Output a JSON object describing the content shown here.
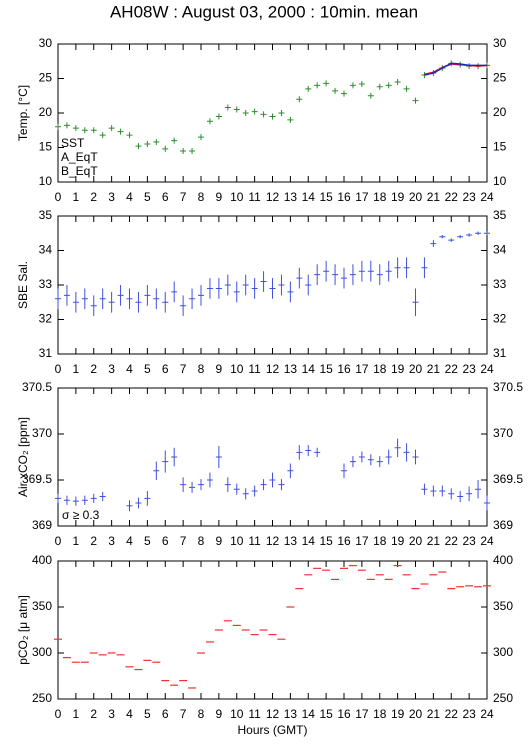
{
  "chart_data": [
    {
      "type": "scatter",
      "title": "AH08W : August 03, 2000 : 10min. mean",
      "ylabel": "Temp. [°C]",
      "x": [
        0,
        0.5,
        1,
        1.5,
        2,
        2.5,
        3,
        3.5,
        4,
        4.5,
        5,
        5.5,
        6,
        6.5,
        7,
        7.5,
        8,
        8.5,
        9,
        9.5,
        10,
        10.5,
        11,
        11.5,
        12,
        12.5,
        13,
        13.5,
        14,
        14.5,
        15,
        15.5,
        16,
        16.5,
        17,
        17.5,
        18,
        18.5,
        19,
        19.5,
        20,
        20.5,
        21,
        21.5,
        22,
        22.5,
        23,
        23.5,
        24
      ],
      "series": [
        {
          "name": "SST",
          "color": "#2e8b2e",
          "style": "cross",
          "values": [
            18,
            18.2,
            17.8,
            17.5,
            17.5,
            16.8,
            17.8,
            17.3,
            16.8,
            15.2,
            15.5,
            15.8,
            14.8,
            16,
            14.5,
            14.5,
            16.5,
            18.8,
            19.5,
            20.8,
            20.5,
            20,
            20.2,
            19.8,
            19.5,
            20,
            19,
            22,
            23.5,
            24,
            24.3,
            23.2,
            22.8,
            24,
            24.2,
            22.5,
            23.8,
            24,
            24.5,
            23.5,
            21.8,
            25.5,
            25.8,
            26.5,
            27.2,
            27,
            26.8,
            26.8,
            26.9
          ]
        },
        {
          "name": "A_EqT",
          "color": "#dd1111",
          "style": "line",
          "values": [
            null,
            null,
            null,
            null,
            null,
            null,
            null,
            null,
            null,
            null,
            null,
            null,
            null,
            null,
            null,
            null,
            null,
            null,
            null,
            null,
            null,
            null,
            null,
            null,
            null,
            null,
            null,
            null,
            null,
            null,
            null,
            null,
            null,
            null,
            null,
            null,
            null,
            null,
            null,
            null,
            null,
            25.6,
            25.9,
            26.6,
            27.1,
            27,
            26.9,
            26.8,
            26.9
          ]
        },
        {
          "name": "B_EqT",
          "color": "#2222cc",
          "style": "line",
          "values": [
            null,
            null,
            null,
            null,
            null,
            null,
            null,
            null,
            null,
            null,
            null,
            null,
            null,
            null,
            null,
            null,
            null,
            null,
            null,
            null,
            null,
            null,
            null,
            null,
            null,
            null,
            null,
            null,
            null,
            null,
            null,
            null,
            null,
            null,
            null,
            null,
            null,
            null,
            null,
            null,
            null,
            25.5,
            25.8,
            26.5,
            27.2,
            27.1,
            26.9,
            26.9,
            26.9
          ]
        }
      ],
      "xlim": [
        0,
        24
      ],
      "xticks": [
        0,
        1,
        2,
        3,
        4,
        5,
        6,
        7,
        8,
        9,
        10,
        11,
        12,
        13,
        14,
        15,
        16,
        17,
        18,
        19,
        20,
        21,
        22,
        23,
        24
      ],
      "ylim": [
        10,
        30
      ],
      "yticks": [
        10,
        15,
        20,
        25,
        30
      ]
    },
    {
      "type": "errorbar",
      "ylabel": "SBE Sal.",
      "color": "#4050e0",
      "x": [
        0,
        0.5,
        1,
        1.5,
        2,
        2.5,
        3,
        3.5,
        4,
        4.5,
        5,
        5.5,
        6,
        6.5,
        7,
        7.5,
        8,
        8.5,
        9,
        9.5,
        10,
        10.5,
        11,
        11.5,
        12,
        12.5,
        13,
        13.5,
        14,
        14.5,
        15,
        15.5,
        16,
        16.5,
        17,
        17.5,
        18,
        18.5,
        19,
        19.5,
        20,
        20.5,
        21,
        21.5,
        22,
        22.5,
        23,
        23.5,
        24
      ],
      "values": [
        32.6,
        32.7,
        32.5,
        32.6,
        32.4,
        32.6,
        32.5,
        32.7,
        32.6,
        32.5,
        32.7,
        32.6,
        32.5,
        32.8,
        32.4,
        32.6,
        32.7,
        32.9,
        32.9,
        33.0,
        32.8,
        33.0,
        32.9,
        33.1,
        32.9,
        33.0,
        32.8,
        33.2,
        33.0,
        33.3,
        33.4,
        33.3,
        33.2,
        33.3,
        33.4,
        33.4,
        33.3,
        33.4,
        33.5,
        33.5,
        32.5,
        33.5,
        34.2,
        34.4,
        34.3,
        34.4,
        34.45,
        34.5,
        34.5
      ],
      "errors": [
        0.3,
        0.3,
        0.3,
        0.3,
        0.3,
        0.3,
        0.3,
        0.3,
        0.3,
        0.3,
        0.3,
        0.3,
        0.3,
        0.3,
        0.3,
        0.3,
        0.3,
        0.3,
        0.3,
        0.3,
        0.3,
        0.3,
        0.3,
        0.3,
        0.3,
        0.3,
        0.3,
        0.3,
        0.3,
        0.3,
        0.3,
        0.3,
        0.3,
        0.3,
        0.3,
        0.3,
        0.3,
        0.3,
        0.3,
        0.3,
        0.4,
        0.3,
        0.1,
        0.05,
        0.05,
        0.05,
        0.05,
        0.05,
        0.05
      ],
      "xlim": [
        0,
        24
      ],
      "xticks": [
        0,
        1,
        2,
        3,
        4,
        5,
        6,
        7,
        8,
        9,
        10,
        11,
        12,
        13,
        14,
        15,
        16,
        17,
        18,
        19,
        20,
        21,
        22,
        23,
        24
      ],
      "ylim": [
        31,
        35
      ],
      "yticks": [
        31,
        32,
        33,
        34,
        35
      ]
    },
    {
      "type": "errorbar",
      "ylabel": "Air xCO₂ [ppm]",
      "annotation": "σ ≥ 0.3",
      "annotation_color": "#e020e0",
      "color": "#4050e0",
      "x": [
        0,
        0.5,
        1,
        1.5,
        2,
        2.5,
        3,
        3.5,
        4,
        4.5,
        5,
        5.5,
        6,
        6.5,
        7,
        7.5,
        8,
        8.5,
        9,
        9.5,
        10,
        10.5,
        11,
        11.5,
        12,
        12.5,
        13,
        13.5,
        14,
        14.5,
        15,
        15.5,
        16,
        16.5,
        17,
        17.5,
        18,
        18.5,
        19,
        19.5,
        20,
        20.5,
        21,
        21.5,
        22,
        22.5,
        23,
        23.5,
        24
      ],
      "values": [
        369.3,
        369.28,
        369.27,
        369.28,
        369.3,
        369.32,
        null,
        null,
        369.22,
        369.25,
        369.3,
        369.6,
        369.7,
        369.75,
        369.45,
        369.42,
        369.45,
        369.5,
        369.75,
        369.45,
        369.4,
        369.35,
        369.38,
        369.45,
        369.5,
        369.45,
        369.6,
        369.8,
        369.82,
        369.8,
        null,
        null,
        369.6,
        369.7,
        369.75,
        369.72,
        369.7,
        369.75,
        369.85,
        369.8,
        369.75,
        369.4,
        369.38,
        369.38,
        369.35,
        369.32,
        369.35,
        369.4,
        369.25
      ],
      "errors": [
        0.05,
        0.05,
        0.05,
        0.05,
        0.05,
        0.05,
        null,
        null,
        0.06,
        0.06,
        0.08,
        0.1,
        0.12,
        0.1,
        0.08,
        0.06,
        0.06,
        0.08,
        0.12,
        0.08,
        0.06,
        0.06,
        0.06,
        0.06,
        0.08,
        0.06,
        0.08,
        0.08,
        0.06,
        0.05,
        null,
        null,
        0.08,
        0.06,
        0.06,
        0.06,
        0.06,
        0.08,
        0.1,
        0.1,
        0.08,
        0.06,
        0.06,
        0.06,
        0.06,
        0.06,
        0.08,
        0.1,
        0.08
      ],
      "xlim": [
        0,
        24
      ],
      "xticks": [
        0,
        1,
        2,
        3,
        4,
        5,
        6,
        7,
        8,
        9,
        10,
        11,
        12,
        13,
        14,
        15,
        16,
        17,
        18,
        19,
        20,
        21,
        22,
        23,
        24
      ],
      "ylim": [
        369,
        370.5
      ],
      "yticks": [
        369,
        369.5,
        370,
        370.5
      ]
    },
    {
      "type": "dash",
      "ylabel": "pCO₂ [μ atm]",
      "xlabel": "Hours (GMT)",
      "color": "#ee3333",
      "x": [
        0,
        0.5,
        1,
        1.5,
        2,
        2.5,
        3,
        3.5,
        4,
        4.5,
        5,
        5.5,
        6,
        6.5,
        7,
        7.5,
        8,
        8.5,
        9,
        9.5,
        10,
        10.5,
        11,
        11.5,
        12,
        12.5,
        13,
        13.5,
        14,
        14.5,
        15,
        15.5,
        16,
        16.5,
        17,
        17.5,
        18,
        18.5,
        19,
        19.5,
        20,
        20.5,
        21,
        21.5,
        22,
        22.5,
        23,
        23.5,
        24
      ],
      "values": [
        315,
        295,
        290,
        290,
        300,
        298,
        300,
        298,
        285,
        282,
        292,
        290,
        270,
        265,
        270,
        262,
        300,
        312,
        325,
        335,
        330,
        325,
        320,
        325,
        320,
        315,
        350,
        370,
        385,
        392,
        390,
        380,
        392,
        395,
        390,
        380,
        385,
        380,
        395,
        385,
        370,
        375,
        385,
        388,
        370,
        372,
        373,
        372,
        373
      ],
      "xlim": [
        0,
        24
      ],
      "xticks": [
        0,
        1,
        2,
        3,
        4,
        5,
        6,
        7,
        8,
        9,
        10,
        11,
        12,
        13,
        14,
        15,
        16,
        17,
        18,
        19,
        20,
        21,
        22,
        23,
        24
      ],
      "ylim": [
        250,
        400
      ],
      "yticks": [
        250,
        300,
        350,
        400
      ]
    }
  ]
}
